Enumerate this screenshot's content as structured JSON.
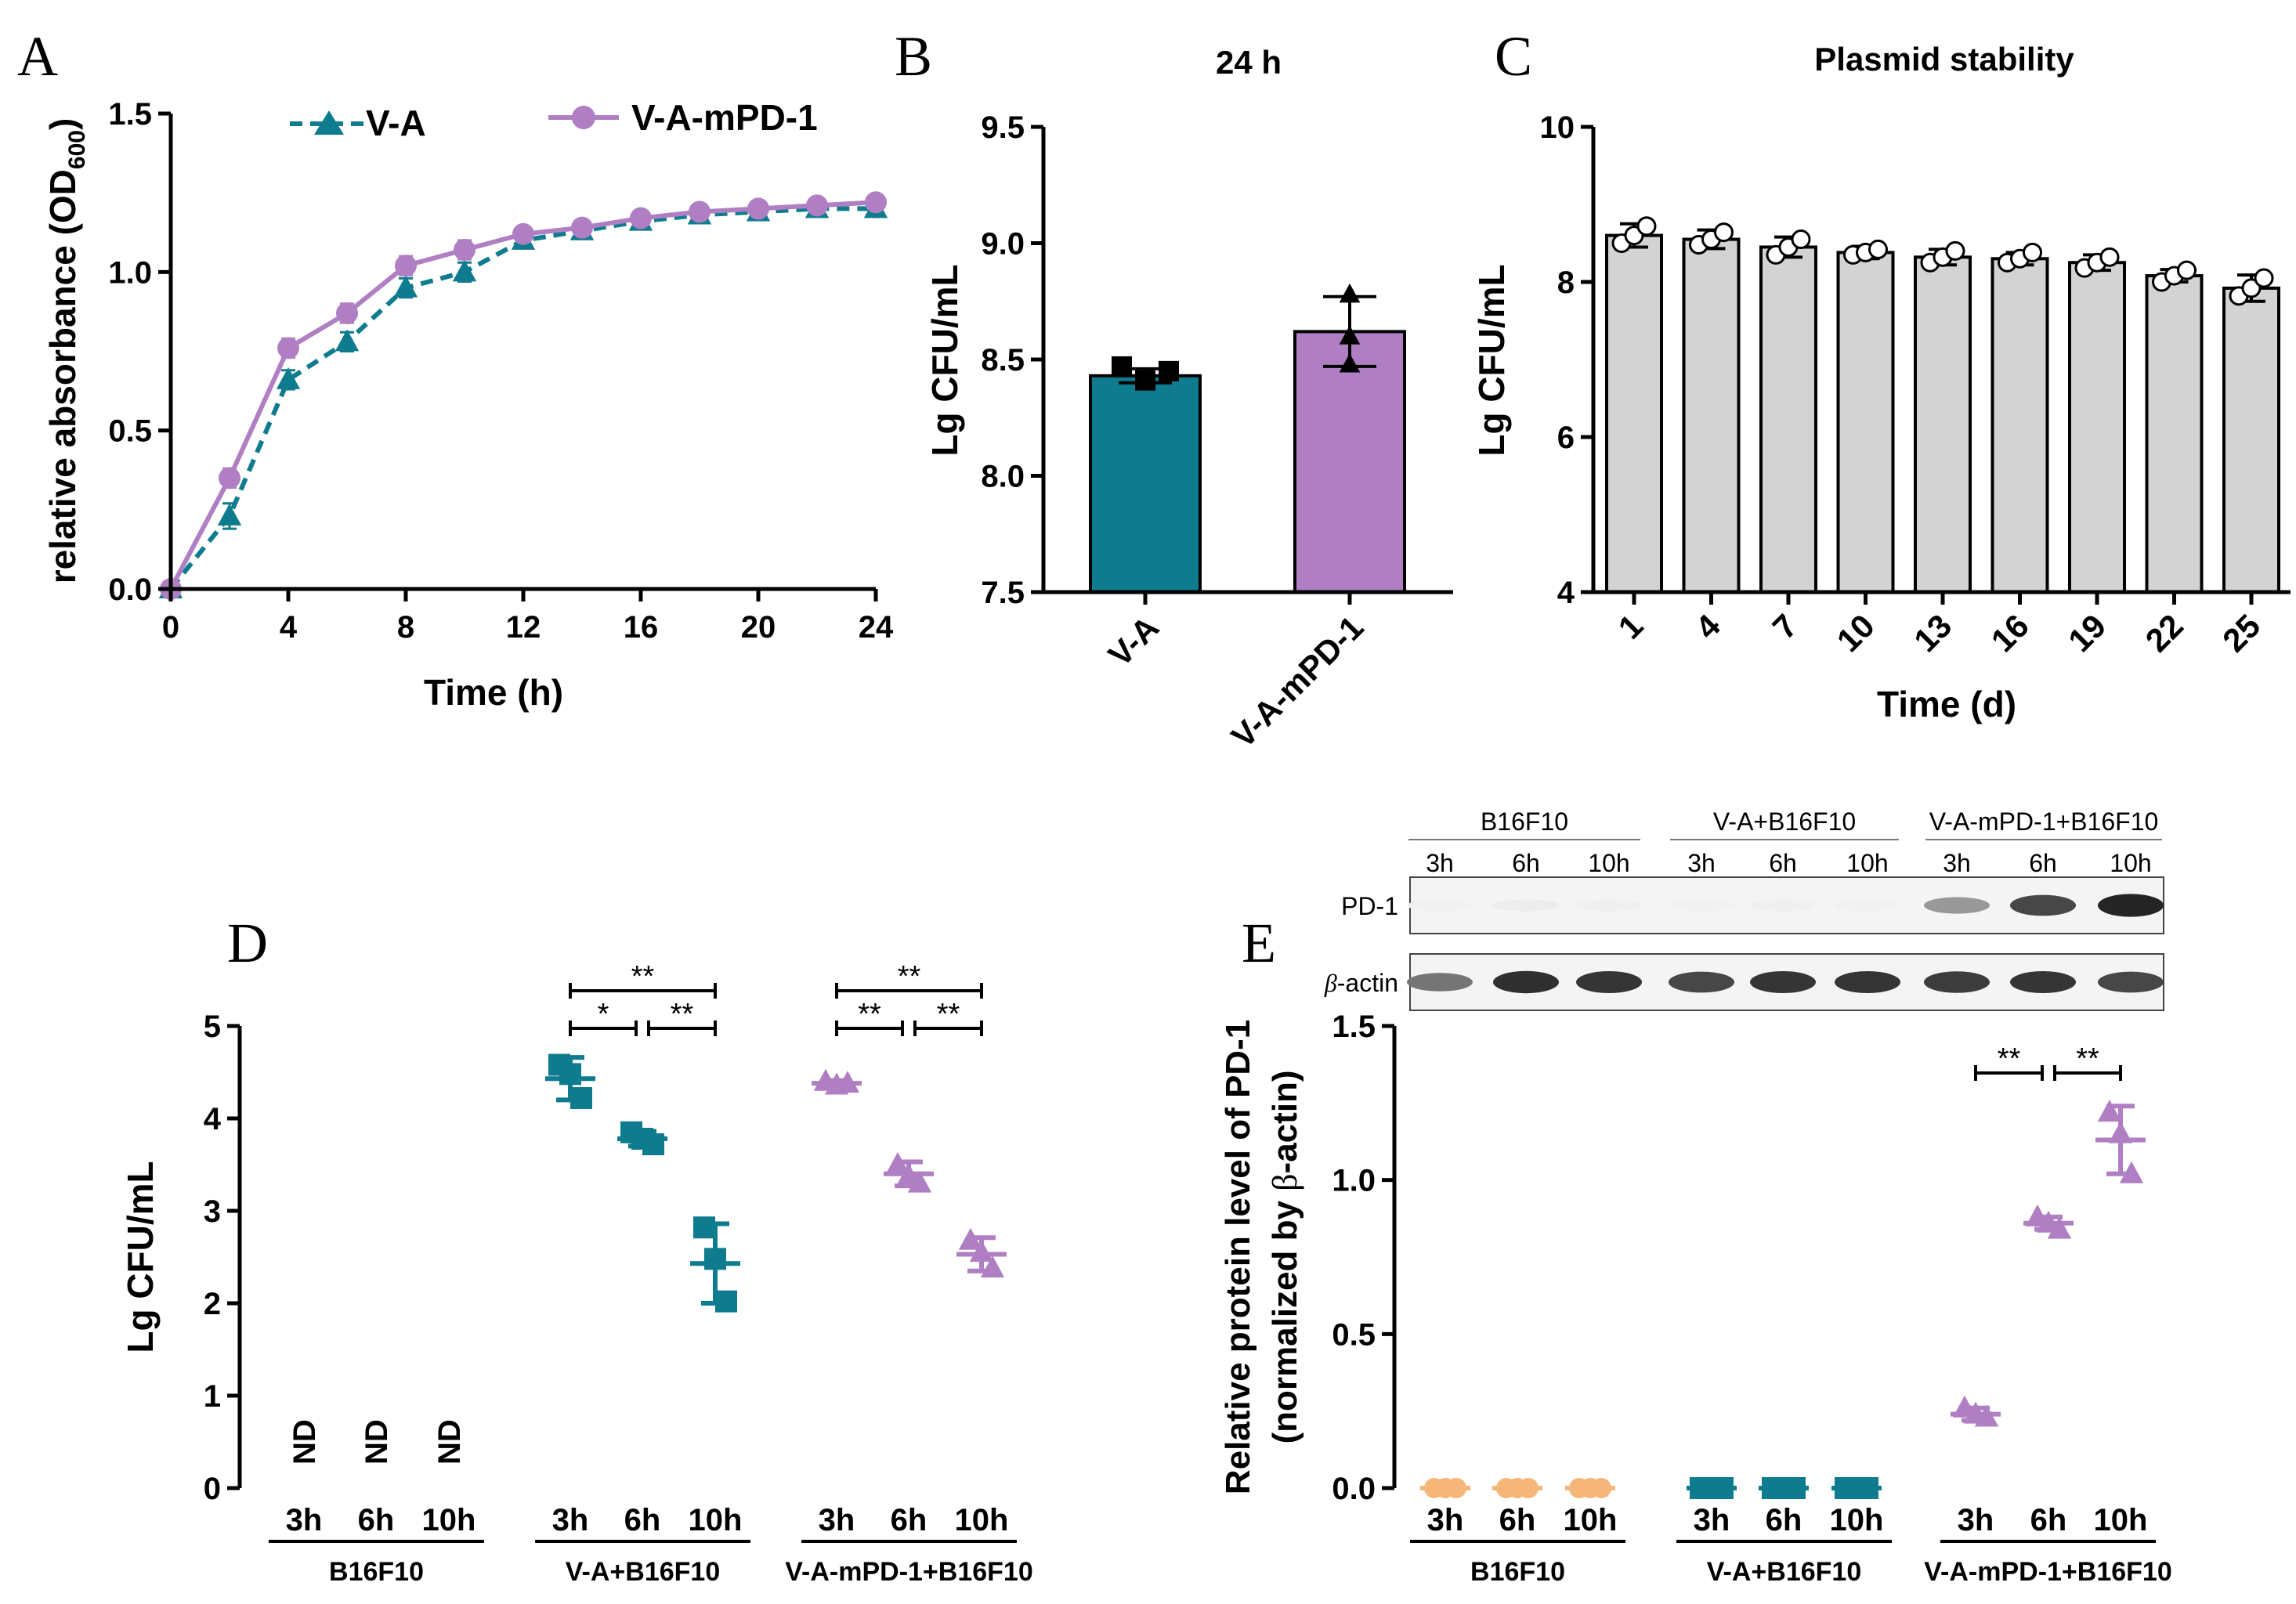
{
  "colors": {
    "teal": "#0e7c8e",
    "purple": "#b07fc3",
    "orange": "#f6b679",
    "bar_gray": "#d3d3d3",
    "black": "#000000"
  },
  "chart_data": [
    {
      "panel": "A",
      "type": "line",
      "title": "",
      "xlabel": "Time (h)",
      "ylabel": "relative absorbance (OD",
      "ylabel_sub": "600",
      "ylabel_close": ")",
      "xlim": [
        0,
        24
      ],
      "ylim": [
        0,
        1.5
      ],
      "x_ticks": [
        "0",
        "4",
        "8",
        "12",
        "16",
        "20",
        "24"
      ],
      "y_ticks": [
        "0.0",
        "0.5",
        "1.0",
        "1.5"
      ],
      "legend": "top",
      "x": [
        0,
        2,
        4,
        6,
        8,
        10,
        12,
        14,
        16,
        18,
        20,
        22,
        24
      ],
      "series": [
        {
          "name": "V-A",
          "marker": "triangle",
          "line": "dashed",
          "values": [
            0.0,
            0.23,
            0.66,
            0.78,
            0.95,
            1.0,
            1.1,
            1.13,
            1.16,
            1.18,
            1.19,
            1.2,
            1.2
          ],
          "errors": [
            0.0,
            0.04,
            0.03,
            0.03,
            0.03,
            0.03,
            0.02,
            0.02,
            0.02,
            0.02,
            0.02,
            0.02,
            0.02
          ]
        },
        {
          "name": "V-A-mPD-1",
          "marker": "circle",
          "line": "solid",
          "values": [
            0.0,
            0.35,
            0.76,
            0.87,
            1.02,
            1.07,
            1.12,
            1.14,
            1.17,
            1.19,
            1.2,
            1.21,
            1.22
          ],
          "errors": [
            0.0,
            0.03,
            0.03,
            0.03,
            0.03,
            0.03,
            0.02,
            0.02,
            0.02,
            0.02,
            0.02,
            0.02,
            0.02
          ]
        }
      ]
    },
    {
      "panel": "B",
      "type": "bar",
      "title": "24 h",
      "xlabel": "",
      "ylabel": "Lg CFU/mL",
      "ylim": [
        7.5,
        9.5
      ],
      "y_ticks": [
        "7.5",
        "8.0",
        "8.5",
        "9.0",
        "9.5"
      ],
      "categories": [
        "V-A",
        "V-A-mPD-1"
      ],
      "values": [
        8.43,
        8.62
      ],
      "errors": [
        0.03,
        0.15
      ],
      "points": [
        [
          8.47,
          8.41,
          8.45
        ],
        [
          8.78,
          8.6,
          8.48
        ]
      ]
    },
    {
      "panel": "C",
      "type": "bar",
      "title": "Plasmid stability",
      "xlabel": "Time (d)",
      "ylabel": "Lg CFU/mL",
      "ylim": [
        4,
        10
      ],
      "y_ticks": [
        "4",
        "6",
        "8",
        "10"
      ],
      "categories": [
        "1",
        "4",
        "7",
        "10",
        "13",
        "16",
        "19",
        "22",
        "25"
      ],
      "values": [
        8.6,
        8.55,
        8.45,
        8.38,
        8.32,
        8.3,
        8.25,
        8.08,
        7.92
      ],
      "errors": [
        0.15,
        0.12,
        0.13,
        0.08,
        0.1,
        0.08,
        0.1,
        0.08,
        0.17
      ],
      "points": [
        [
          8.5,
          8.6,
          8.72
        ],
        [
          8.48,
          8.55,
          8.64
        ],
        [
          8.35,
          8.45,
          8.55
        ],
        [
          8.35,
          8.38,
          8.42
        ],
        [
          8.25,
          8.32,
          8.4
        ],
        [
          8.25,
          8.3,
          8.38
        ],
        [
          8.18,
          8.25,
          8.32
        ],
        [
          8.0,
          8.08,
          8.15
        ],
        [
          7.82,
          7.92,
          8.05
        ]
      ]
    },
    {
      "panel": "D",
      "type": "scatter",
      "title": "",
      "ylabel": "Lg CFU/mL",
      "ylim": [
        0,
        5
      ],
      "y_ticks": [
        "0",
        "1",
        "2",
        "3",
        "4",
        "5"
      ],
      "nd_label": "ND",
      "groups": [
        {
          "name": "B16F10",
          "color": "orange",
          "ticks": [
            "3h",
            "6h",
            "10h"
          ],
          "nd": true,
          "means": [],
          "sd": [],
          "points": []
        },
        {
          "name": "V-A+B16F10",
          "color": "teal",
          "marker": "square",
          "ticks": [
            "3h",
            "6h",
            "10h"
          ],
          "nd": false,
          "means": [
            4.43,
            3.78,
            2.43
          ],
          "sd": [
            0.23,
            0.08,
            0.43
          ],
          "points": [
            [
              4.58,
              4.48,
              4.22
            ],
            [
              3.85,
              3.78,
              3.72
            ],
            [
              2.82,
              2.48,
              2.02
            ]
          ]
        },
        {
          "name": "V-A-mPD-1+B16F10",
          "color": "purple",
          "marker": "triangle",
          "ticks": [
            "3h",
            "6h",
            "10h"
          ],
          "nd": false,
          "means": [
            4.38,
            3.4,
            2.53
          ],
          "sd": [
            0.03,
            0.13,
            0.18
          ],
          "points": [
            [
              4.4,
              4.36,
              4.38
            ],
            [
              3.5,
              3.38,
              3.3
            ],
            [
              2.68,
              2.55,
              2.38
            ]
          ]
        }
      ],
      "significance": [
        {
          "group": 1,
          "from": 0,
          "to": 1,
          "label": "*",
          "level": 0
        },
        {
          "group": 1,
          "from": 1,
          "to": 2,
          "label": "**",
          "level": 0
        },
        {
          "group": 1,
          "from": 0,
          "to": 2,
          "label": "**",
          "level": 1
        },
        {
          "group": 2,
          "from": 0,
          "to": 1,
          "label": "**",
          "level": 0
        },
        {
          "group": 2,
          "from": 1,
          "to": 2,
          "label": "**",
          "level": 0
        },
        {
          "group": 2,
          "from": 0,
          "to": 2,
          "label": "**",
          "level": 1
        }
      ]
    },
    {
      "panel": "E",
      "type": "scatter",
      "title": "",
      "ylabel": "Relative protein level of PD-1",
      "ylabel2_prefix": "(normalized by ",
      "ylabel2_beta": "β",
      "ylabel2_suffix": "-actin)",
      "ylim": [
        0,
        1.5
      ],
      "y_ticks": [
        "0.0",
        "0.5",
        "1.0",
        "1.5"
      ],
      "groups": [
        {
          "name": "B16F10",
          "color": "orange",
          "marker": "circle",
          "ticks": [
            "3h",
            "6h",
            "10h"
          ],
          "means": [
            0.0,
            0.0,
            0.0
          ],
          "sd": [
            0.0,
            0.0,
            0.0
          ],
          "points": [
            [
              0,
              0,
              0
            ],
            [
              0,
              0,
              0
            ],
            [
              0,
              0,
              0
            ]
          ]
        },
        {
          "name": "V-A+B16F10",
          "color": "teal",
          "marker": "square",
          "ticks": [
            "3h",
            "6h",
            "10h"
          ],
          "means": [
            0.0,
            0.0,
            0.0
          ],
          "sd": [
            0.0,
            0.0,
            0.0
          ],
          "points": [
            [
              0,
              0,
              0
            ],
            [
              0,
              0,
              0
            ],
            [
              0,
              0,
              0
            ]
          ]
        },
        {
          "name": "V-A-mPD-1+B16F10",
          "color": "purple",
          "marker": "triangle",
          "ticks": [
            "3h",
            "6h",
            "10h"
          ],
          "means": [
            0.24,
            0.86,
            1.13
          ],
          "sd": [
            0.02,
            0.02,
            0.11
          ],
          "points": [
            [
              0.26,
              0.24,
              0.23
            ],
            [
              0.88,
              0.86,
              0.84
            ],
            [
              1.22,
              1.15,
              1.02
            ]
          ]
        }
      ],
      "significance": [
        {
          "group": 2,
          "from": 0,
          "to": 1,
          "label": "**",
          "level": 0
        },
        {
          "group": 2,
          "from": 1,
          "to": 2,
          "label": "**",
          "level": 0
        }
      ]
    }
  ],
  "panels": {
    "A": "A",
    "B": "B",
    "C": "C",
    "D": "D",
    "E": "E"
  },
  "western_blot": {
    "groups": [
      "B16F10",
      "V-A+B16F10",
      "V-A-mPD-1+B16F10"
    ],
    "lanes": [
      "3h",
      "6h",
      "10h",
      "3h",
      "6h",
      "10h",
      "3h",
      "6h",
      "10h"
    ],
    "rows": [
      {
        "label": "PD-1",
        "beta": false,
        "intensities": [
          0.06,
          0.08,
          0.07,
          0.06,
          0.07,
          0.06,
          0.45,
          0.8,
          0.95
        ]
      },
      {
        "label": "-actin",
        "beta": true,
        "beta_symbol": "β",
        "intensities": [
          0.6,
          0.9,
          0.88,
          0.8,
          0.88,
          0.88,
          0.85,
          0.88,
          0.8
        ]
      }
    ]
  }
}
